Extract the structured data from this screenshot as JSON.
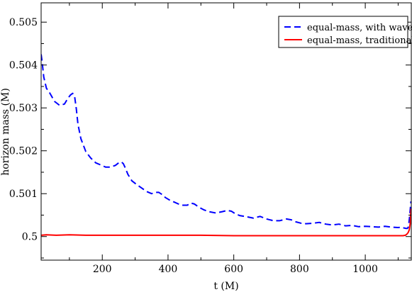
{
  "chart_data": {
    "type": "line",
    "xlabel": "t (M)",
    "ylabel": "horizon mass (M)",
    "xlim": [
      14,
      1140
    ],
    "ylim": [
      0.49945,
      0.50545
    ],
    "xticks": [
      200,
      400,
      600,
      800,
      1000
    ],
    "xtick_labels": [
      "200",
      "400",
      "600",
      "800",
      "1000"
    ],
    "yticks": [
      0.5,
      0.501,
      0.502,
      0.503,
      0.504,
      0.505
    ],
    "ytick_labels": [
      "0.5",
      "0.501",
      "0.502",
      "0.503",
      "0.504",
      "0.505"
    ],
    "legend_position": "top-right",
    "grid": false,
    "series": [
      {
        "name": "equal-mass, with waves",
        "color": "#0000ff",
        "dash": "dashed",
        "x": [
          14,
          17,
          22,
          30,
          40,
          55,
          70,
          85,
          95,
          103,
          110,
          116,
          121,
          126,
          135,
          150,
          165,
          180,
          195,
          210,
          225,
          240,
          250,
          258,
          264,
          270,
          278,
          290,
          305,
          320,
          335,
          350,
          362,
          372,
          380,
          392,
          405,
          420,
          440,
          458,
          470,
          480,
          495,
          510,
          525,
          545,
          565,
          580,
          593,
          605,
          618,
          640,
          660,
          680,
          700,
          720,
          740,
          760,
          775,
          790,
          805,
          820,
          840,
          860,
          880,
          900,
          920,
          940,
          960,
          980,
          1000,
          1020,
          1040,
          1060,
          1080,
          1100,
          1110,
          1118,
          1124,
          1128,
          1131,
          1134,
          1137,
          1139
        ],
        "y": [
          0.50425,
          0.50408,
          0.50372,
          0.50346,
          0.50335,
          0.50315,
          0.50306,
          0.50309,
          0.50322,
          0.5033,
          0.50334,
          0.50326,
          0.50298,
          0.50262,
          0.50228,
          0.50198,
          0.50183,
          0.50172,
          0.50167,
          0.50162,
          0.50162,
          0.50166,
          0.50172,
          0.50174,
          0.5017,
          0.5016,
          0.50145,
          0.5013,
          0.50121,
          0.50113,
          0.50105,
          0.501,
          0.50103,
          0.50103,
          0.50099,
          0.50091,
          0.50085,
          0.5008,
          0.50073,
          0.50073,
          0.50078,
          0.50076,
          0.50068,
          0.50062,
          0.50058,
          0.50055,
          0.50058,
          0.50061,
          0.50059,
          0.50053,
          0.50049,
          0.50046,
          0.50043,
          0.50047,
          0.50041,
          0.50037,
          0.50037,
          0.50041,
          0.50039,
          0.50034,
          0.50031,
          0.5003,
          0.50031,
          0.50033,
          0.50029,
          0.50027,
          0.50029,
          0.50025,
          0.50026,
          0.50023,
          0.50024,
          0.50023,
          0.50022,
          0.50024,
          0.50022,
          0.50021,
          0.50022,
          0.5002,
          0.50019,
          0.50019,
          0.50022,
          0.5004,
          0.50065,
          0.50082
        ]
      },
      {
        "name": "equal-mass, traditional",
        "color": "#ff0000",
        "dash": "solid",
        "x": [
          14,
          30,
          60,
          100,
          150,
          200,
          300,
          400,
          500,
          600,
          700,
          800,
          900,
          1000,
          1050,
          1100,
          1115,
          1122,
          1127,
          1131,
          1134,
          1137,
          1139
        ],
        "y": [
          0.50003,
          0.50004,
          0.50003,
          0.50004,
          0.50003,
          0.50003,
          0.50003,
          0.50003,
          0.50003,
          0.50002,
          0.50002,
          0.50002,
          0.50002,
          0.50002,
          0.50002,
          0.50002,
          0.50002,
          0.50003,
          0.50006,
          0.5001,
          0.50016,
          0.50032,
          0.50065
        ]
      }
    ]
  }
}
